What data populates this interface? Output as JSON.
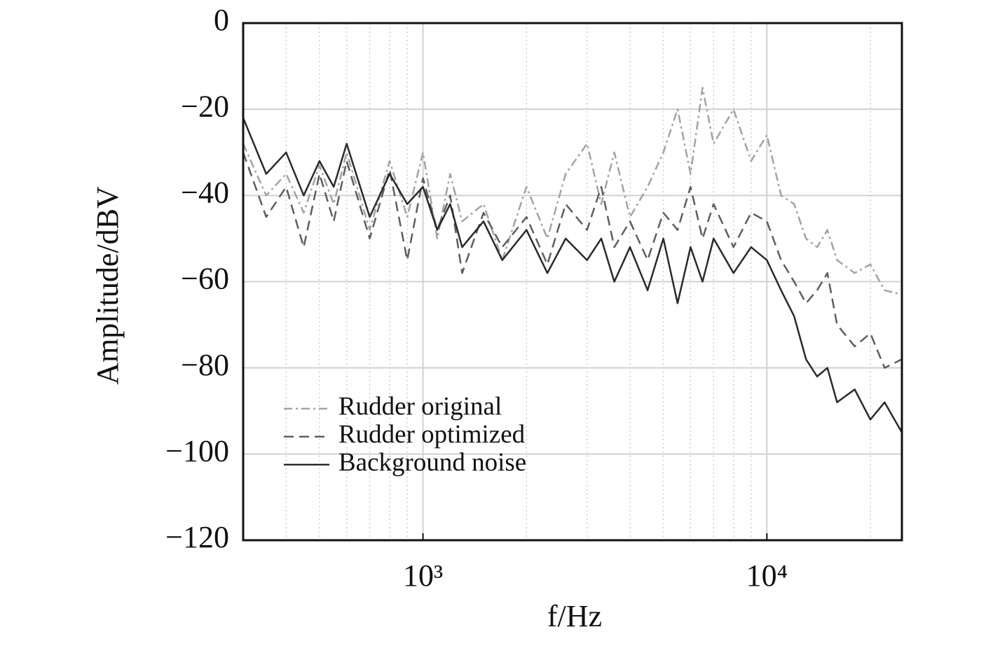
{
  "chart_data": {
    "type": "line",
    "x_label": "f/Hz",
    "y_label": "Amplitude/dBV",
    "xscale": "log",
    "xlim": [
      300,
      24700
    ],
    "ylim": [
      -120,
      0
    ],
    "xticks": [
      {
        "value": 1000,
        "label": "10³"
      },
      {
        "value": 10000,
        "label": "10⁴"
      }
    ],
    "xminor": [
      400,
      500,
      600,
      700,
      800,
      900,
      2000,
      3000,
      4000,
      5000,
      6000,
      7000,
      8000,
      9000,
      20000
    ],
    "yticks": [
      0,
      {
        "value": -20,
        "label": "−20"
      },
      {
        "value": -40,
        "label": "−40"
      },
      {
        "value": -60,
        "label": "−60"
      },
      {
        "value": -80,
        "label": "−80"
      },
      {
        "value": -100,
        "label": "−100"
      },
      {
        "value": -120,
        "label": "−120"
      }
    ],
    "grid": true,
    "legend": "lower-left",
    "x": [
      300,
      350,
      400,
      450,
      500,
      550,
      600,
      700,
      800,
      900,
      1000,
      1100,
      1200,
      1300,
      1500,
      1700,
      2000,
      2300,
      2600,
      3000,
      3300,
      3600,
      4000,
      4500,
      5000,
      5500,
      6000,
      6500,
      7000,
      8000,
      9000,
      10000,
      11000,
      12000,
      13000,
      14000,
      15000,
      16000,
      18000,
      20000,
      22000,
      24700
    ],
    "series": [
      {
        "name": "Rudder original",
        "color": "#a3a3a3",
        "dash": "12 5 3 5",
        "values": [
          -28,
          -40,
          -35,
          -44,
          -33,
          -42,
          -30,
          -48,
          -32,
          -45,
          -30,
          -50,
          -35,
          -46,
          -42,
          -55,
          -38,
          -50,
          -35,
          -28,
          -42,
          -30,
          -45,
          -38,
          -30,
          -20,
          -35,
          -15,
          -28,
          -20,
          -32,
          -26,
          -40,
          -42,
          -50,
          -52,
          -48,
          -55,
          -58,
          -56,
          -62,
          -63
        ]
      },
      {
        "name": "Rudder optimized",
        "color": "#5e5e5e",
        "dash": "14 8",
        "values": [
          -30,
          -45,
          -38,
          -52,
          -35,
          -46,
          -32,
          -50,
          -34,
          -55,
          -36,
          -48,
          -40,
          -58,
          -44,
          -52,
          -45,
          -56,
          -42,
          -48,
          -38,
          -52,
          -46,
          -55,
          -44,
          -48,
          -38,
          -50,
          -42,
          -52,
          -44,
          -46,
          -55,
          -60,
          -65,
          -62,
          -58,
          -70,
          -75,
          -72,
          -80,
          -78
        ]
      },
      {
        "name": "Background noise",
        "color": "#2a2a2a",
        "dash": "none",
        "values": [
          -22,
          -35,
          -30,
          -40,
          -32,
          -38,
          -28,
          -45,
          -35,
          -42,
          -38,
          -48,
          -42,
          -52,
          -46,
          -55,
          -48,
          -58,
          -50,
          -55,
          -50,
          -60,
          -52,
          -62,
          -50,
          -65,
          -52,
          -60,
          -50,
          -58,
          -52,
          -55,
          -62,
          -68,
          -78,
          -82,
          -80,
          -88,
          -85,
          -92,
          -88,
          -95
        ]
      }
    ]
  }
}
